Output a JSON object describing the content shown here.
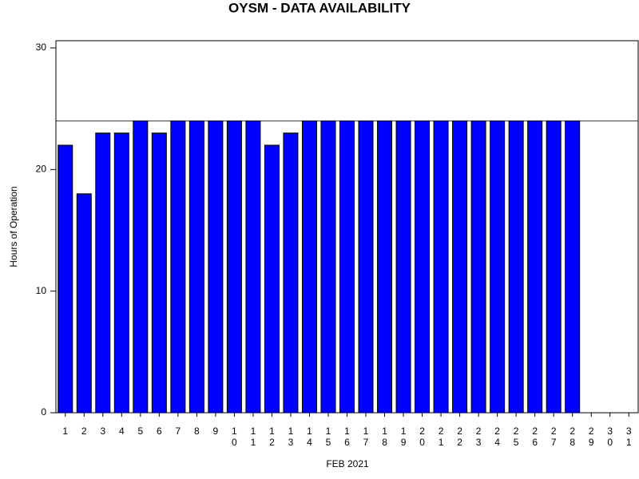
{
  "chart_data": {
    "type": "bar",
    "title": "OYSM - DATA AVAILABILITY",
    "x_label": "FEB 2021",
    "y_label": "Hours of Operation",
    "categories": [
      "1",
      "2",
      "3",
      "4",
      "5",
      "6",
      "7",
      "8",
      "9",
      "10",
      "11",
      "12",
      "13",
      "14",
      "15",
      "16",
      "17",
      "18",
      "19",
      "20",
      "21",
      "22",
      "23",
      "24",
      "25",
      "26",
      "27",
      "28",
      "29",
      "30",
      "31"
    ],
    "values": [
      22,
      18,
      23,
      23,
      24,
      23,
      24,
      24,
      24,
      24,
      24,
      22,
      23,
      24,
      24,
      24,
      24,
      24,
      24,
      24,
      24,
      24,
      24,
      24,
      24,
      24,
      24,
      24,
      null,
      null,
      null
    ],
    "color": "#0000ff",
    "ylim": [
      0,
      30
    ],
    "yticks": [
      0,
      10,
      20,
      30
    ],
    "reference_line": 24
  }
}
